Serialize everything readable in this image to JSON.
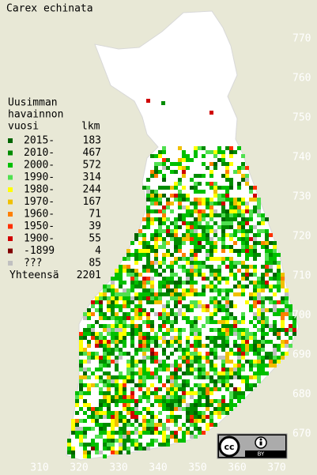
{
  "title": "Carex echinata",
  "legend": {
    "heading": [
      "Uusimman",
      "havainnon",
      "vuosi"
    ],
    "count_heading": "lkm",
    "rows": [
      {
        "label": "2015-",
        "count": 183,
        "color": "#006400"
      },
      {
        "label": "2010-",
        "count": 467,
        "color": "#008c00"
      },
      {
        "label": "2000-",
        "count": 572,
        "color": "#00c000"
      },
      {
        "label": "1990-",
        "count": 314,
        "color": "#50e050"
      },
      {
        "label": "1980-",
        "count": 244,
        "color": "#ffff00"
      },
      {
        "label": "1970-",
        "count": 167,
        "color": "#f0c000"
      },
      {
        "label": "1960-",
        "count": 71,
        "color": "#ff8000"
      },
      {
        "label": "1950-",
        "count": 39,
        "color": "#ff3000"
      },
      {
        "label": "1900-",
        "count": 55,
        "color": "#d00000"
      },
      {
        "label": "-1899",
        "count": 4,
        "color": "#800000"
      },
      {
        "label": "???",
        "count": 85,
        "color": "#c0c0c0"
      }
    ],
    "total_label": "Yhteensä",
    "total": 2201
  },
  "x_axis": {
    "ticks": [
      310,
      320,
      330,
      340,
      350,
      360,
      370
    ]
  },
  "y_axis": {
    "ticks": [
      670,
      680,
      690,
      700,
      710,
      720,
      730,
      740,
      750,
      760,
      770
    ]
  },
  "license": {
    "icon": "cc",
    "label": "BY"
  }
}
